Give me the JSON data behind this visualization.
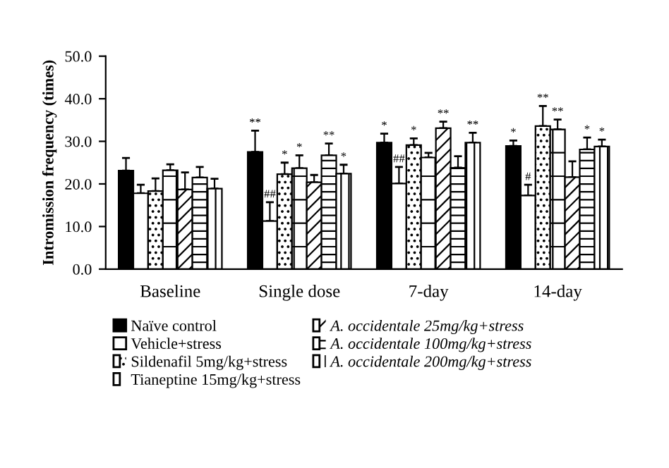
{
  "chart_data": {
    "type": "bar",
    "ylabel": "Intromission frequency (times)",
    "categories": [
      "Baseline",
      "Single dose",
      "7-day",
      "14-day"
    ],
    "ylim": [
      0,
      50
    ],
    "yticks": [
      {
        "value": 0,
        "label": "0.0"
      },
      {
        "value": 10,
        "label": "10.0"
      },
      {
        "value": 20,
        "label": "20.0"
      },
      {
        "value": 30,
        "label": "30.0"
      },
      {
        "value": 40,
        "label": "40.0"
      },
      {
        "value": 50,
        "label": "50.0"
      }
    ],
    "grid": false,
    "legend": "bottom",
    "series": [
      {
        "name": "Naïve control",
        "color": "#000000",
        "values": [
          23.1,
          27.5,
          29.7,
          28.9
        ],
        "errors": [
          3.0,
          5.0,
          2.1,
          1.3
        ],
        "value_labels": [
          null,
          "**",
          "*",
          "*"
        ]
      },
      {
        "name": "Vehicle+stress",
        "color": "#ffffff",
        "values": [
          17.8,
          11.3,
          20.1,
          17.3
        ],
        "errors": [
          2.0,
          4.4,
          3.9,
          2.5
        ],
        "value_labels": [
          null,
          "##",
          "##",
          "#"
        ]
      },
      {
        "name": "Sildenafil 5mg/kg+stress",
        "color": "#ffffff",
        "values": [
          18.3,
          22.3,
          29.1,
          33.6
        ],
        "errors": [
          3.0,
          2.7,
          1.6,
          4.7
        ],
        "value_labels": [
          null,
          "*",
          "*",
          "**"
        ]
      },
      {
        "name": "Tianeptine 15mg/kg+stress",
        "color": "#ffffff",
        "values": [
          23.2,
          23.7,
          26.2,
          32.8
        ],
        "errors": [
          1.4,
          3.0,
          1.1,
          2.3
        ],
        "value_labels": [
          null,
          "*",
          null,
          "**"
        ]
      },
      {
        "name": "A. occidentale 25mg/kg+stress",
        "color": "#ffffff",
        "values": [
          18.7,
          20.4,
          33.1,
          21.6
        ],
        "errors": [
          4.0,
          1.7,
          1.5,
          3.7
        ],
        "value_labels": [
          null,
          null,
          "**",
          null
        ]
      },
      {
        "name": "A. occidentale 100mg/kg+stress",
        "color": "#ffffff",
        "values": [
          21.5,
          26.7,
          23.8,
          28.1
        ],
        "errors": [
          2.5,
          2.8,
          2.7,
          2.8
        ],
        "value_labels": [
          null,
          "**",
          null,
          "*"
        ]
      },
      {
        "name": "A. occidentale 200mg/kg+stress",
        "color": "#ffffff",
        "values": [
          18.9,
          22.4,
          29.7,
          28.8
        ],
        "errors": [
          2.3,
          2.1,
          2.3,
          1.6
        ],
        "value_labels": [
          null,
          "*",
          "**",
          "*"
        ]
      }
    ]
  }
}
